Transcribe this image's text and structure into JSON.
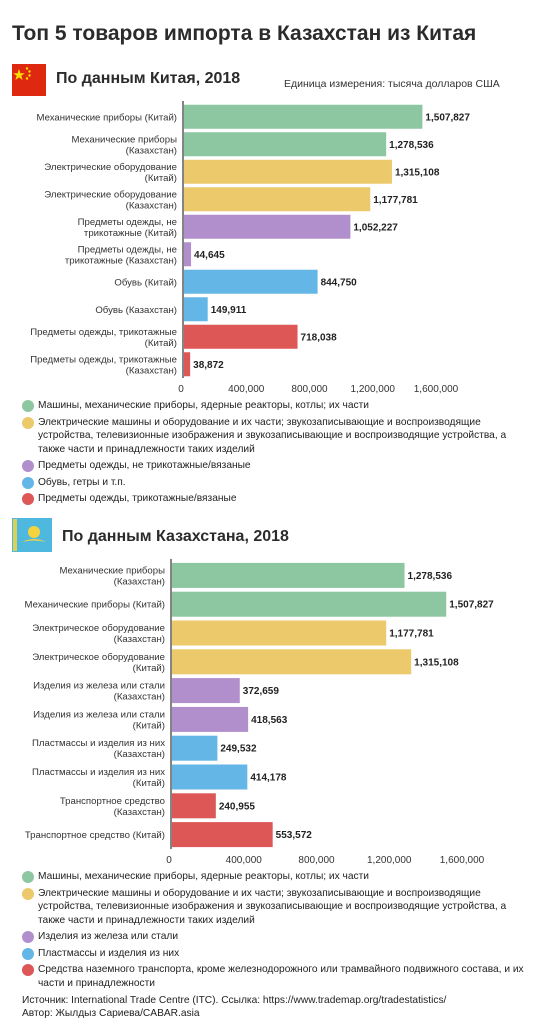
{
  "title": "Топ 5 товаров импорта в Казахстан из Китая",
  "unit_note": "Единица измерения: тысяча долларов США",
  "colors": {
    "green": "#8cc7a1",
    "yellow": "#ecc96a",
    "purple": "#b18fcc",
    "blue": "#63b6e6",
    "red": "#dd5757"
  },
  "chart_data": [
    {
      "type": "bar",
      "orientation": "horizontal",
      "title": "По данным Китая, 2018",
      "xlim": [
        0,
        1600000
      ],
      "ticks": [
        "0",
        "400,000",
        "800,000",
        "1,200,000",
        "1,600,000"
      ],
      "tick_values": [
        0,
        400000,
        800000,
        1200000,
        1600000
      ],
      "categories": [
        [
          "Механические приборы (Китай)"
        ],
        [
          "Механические приборы",
          "(Казахстан)"
        ],
        [
          "Электрические оборудование",
          "(Китай)"
        ],
        [
          "Электрические оборудование",
          "(Казахстан)"
        ],
        [
          "Предметы одежды, не",
          "трикотажные (Китай)"
        ],
        [
          "Предметы одежды, не",
          "трикотажные (Казахстан)"
        ],
        [
          "Обувь (Китай)"
        ],
        [
          "Обувь (Казахстан)"
        ],
        [
          "Предметы одежды, трикотажные",
          "(Китай)"
        ],
        [
          "Предметы одежды, трикотажные",
          "(Казахстан)"
        ]
      ],
      "values": [
        1507827,
        1278536,
        1315108,
        1177781,
        1052227,
        44645,
        844750,
        149911,
        718038,
        38872
      ],
      "value_labels": [
        "1,507,827",
        "1,278,536",
        "1,315,108",
        "1,177,781",
        "1,052,227",
        "44,645",
        "844,750",
        "149,911",
        "718,038",
        "38,872"
      ],
      "bar_colors": [
        "green",
        "green",
        "yellow",
        "yellow",
        "purple",
        "purple",
        "blue",
        "blue",
        "red",
        "red"
      ],
      "legend": [
        {
          "color": "green",
          "text": "Машины, механические приборы, ядерные реакторы, котлы; их части"
        },
        {
          "color": "yellow",
          "text": "Электрические машины и оборудование и их части; звукозаписывающие и воспроизводящие устройства, телевизионные изображения и звукозаписывающие и воспроизводящие устройства, а также части и принадлежности таких изделий"
        },
        {
          "color": "purple",
          "text": "Предметы одежды, не трикотажные/вязаные"
        },
        {
          "color": "blue",
          "text": "Обувь, гетры и т.п."
        },
        {
          "color": "red",
          "text": "Предметы одежды, трикотажные/вязаные"
        }
      ]
    },
    {
      "type": "bar",
      "orientation": "horizontal",
      "title": "По данным Казахстана, 2018",
      "xlim": [
        0,
        1600000
      ],
      "ticks": [
        "0",
        "400,000",
        "800,000",
        "1,200,000",
        "1,600,000"
      ],
      "tick_values": [
        0,
        400000,
        800000,
        1200000,
        1600000
      ],
      "categories": [
        [
          "Механические приборы",
          "(Казахстан)"
        ],
        [
          "Механические приборы (Китай)"
        ],
        [
          "Электрическое оборудование",
          "(Казахстан)"
        ],
        [
          "Электрическое оборудование",
          "(Китай)"
        ],
        [
          "Изделия из железа или стали",
          "(Казахстан)"
        ],
        [
          "Изделия из железа или стали",
          "(Китай)"
        ],
        [
          "Пластмассы и изделия из них",
          "(Казахстан)"
        ],
        [
          "Пластмассы и изделия из них",
          "(Китай)"
        ],
        [
          "Транспортное средство",
          "(Казахстан)"
        ],
        [
          "Транспортное средство (Китай)"
        ]
      ],
      "values": [
        1278536,
        1507827,
        1177781,
        1315108,
        372659,
        418563,
        249532,
        414178,
        240955,
        553572
      ],
      "value_labels": [
        "1,278,536",
        "1,507,827",
        "1,177,781",
        "1,315,108",
        "372,659",
        "418,563",
        "249,532",
        "414,178",
        "240,955",
        "553,572"
      ],
      "bar_colors": [
        "green",
        "green",
        "yellow",
        "yellow",
        "purple",
        "purple",
        "blue",
        "blue",
        "red",
        "red"
      ],
      "legend": [
        {
          "color": "green",
          "text": "Машины, механические приборы, ядерные реакторы, котлы; их части"
        },
        {
          "color": "yellow",
          "text": "Электрические машины и оборудование и их части; звукозаписывающие и воспроизводящие устройства, телевизионные изображения и звукозаписывающие и воспроизводящие устройства, а также части и принадлежности таких изделий"
        },
        {
          "color": "purple",
          "text": "Изделия из железа или стали"
        },
        {
          "color": "blue",
          "text": "Пластмассы и изделия из них"
        },
        {
          "color": "red",
          "text": "Средства наземного транспорта, кроме железнодорожного или трамвайного подвижного состава, и их части и принадлежности"
        }
      ]
    }
  ],
  "footer": {
    "source": "Источник: International Trade Centre (ITC). Ссылка: https://www.trademap.org/tradestatistics/",
    "author": "Автор: Жылдыз Сариева/CABAR.asia"
  }
}
